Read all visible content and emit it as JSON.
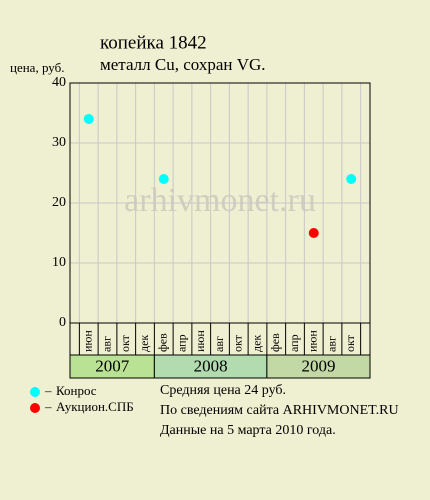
{
  "chart_data": {
    "type": "scatter",
    "title": "копейка 1842",
    "subtitle": "металл Cu, сохран VG.",
    "y_label": "цена, руб.",
    "watermark": "arhivmonet.ru",
    "years": [
      {
        "label": "2007",
        "color": "#b9e294",
        "months": [
          "июн",
          "авг",
          "окт",
          "дек"
        ]
      },
      {
        "label": "2008",
        "color": "#b2dcb0",
        "months": [
          "фев",
          "апр",
          "июн",
          "авг",
          "окт",
          "дек"
        ]
      },
      {
        "label": "2009",
        "color": "#c2d9a6",
        "months": [
          "фев",
          "апр",
          "июн",
          "авг",
          "окт"
        ]
      }
    ],
    "series": [
      {
        "name": "Конрос",
        "color": "#00ffff",
        "values": [
          34,
          null,
          null,
          null,
          24,
          null,
          null,
          null,
          null,
          null,
          null,
          null,
          null,
          null,
          24
        ]
      },
      {
        "name": "Аукцион.СПБ",
        "color": "#ff0000",
        "values": [
          null,
          null,
          null,
          null,
          null,
          null,
          null,
          null,
          null,
          null,
          null,
          null,
          15,
          null,
          null
        ]
      }
    ],
    "ylim": [
      0,
      40
    ],
    "yticks": [
      0,
      10,
      20,
      30,
      40
    ],
    "grid": true,
    "notes": [
      "Средняя цена 24 руб.",
      "По  сведениям сайта ARHIVMONET.RU",
      "Данные на 5 марта 2010 года."
    ]
  }
}
